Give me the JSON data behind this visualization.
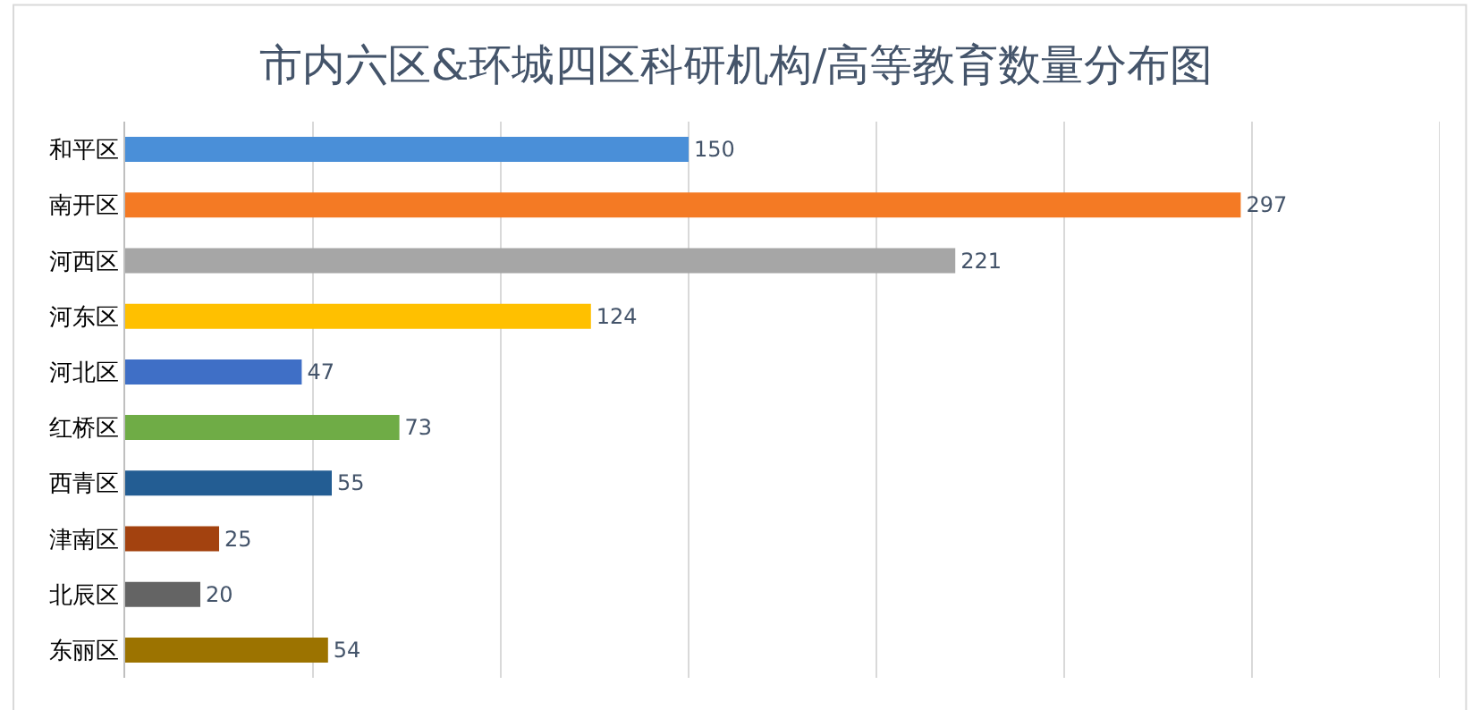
{
  "chart_data": {
    "type": "bar",
    "orientation": "horizontal",
    "title": "市内六区&环城四区科研机构/高等教育数量分布图",
    "categories": [
      "和平区",
      "南开区",
      "河西区",
      "河东区",
      "河北区",
      "红桥区",
      "西青区",
      "津南区",
      "北辰区",
      "东丽区"
    ],
    "values": [
      150,
      297,
      221,
      124,
      47,
      73,
      55,
      25,
      20,
      54
    ],
    "colors": [
      "#4a8fd8",
      "#f47a24",
      "#a6a6a6",
      "#ffc000",
      "#3f6fc6",
      "#6fac46",
      "#235d93",
      "#a3420f",
      "#646464",
      "#9c7300"
    ],
    "xlim": [
      0,
      350
    ],
    "xticks": [
      {
        "value": 0,
        "label": null
      },
      {
        "value": 50,
        "label": null
      },
      {
        "value": 100,
        "label": null
      },
      {
        "value": 150,
        "label": null
      },
      {
        "value": 200,
        "label": null
      },
      {
        "value": 250,
        "label": null
      },
      {
        "value": 300,
        "label": null
      }
    ],
    "grid": "x",
    "data_labels": true,
    "tick_labels": "y"
  }
}
